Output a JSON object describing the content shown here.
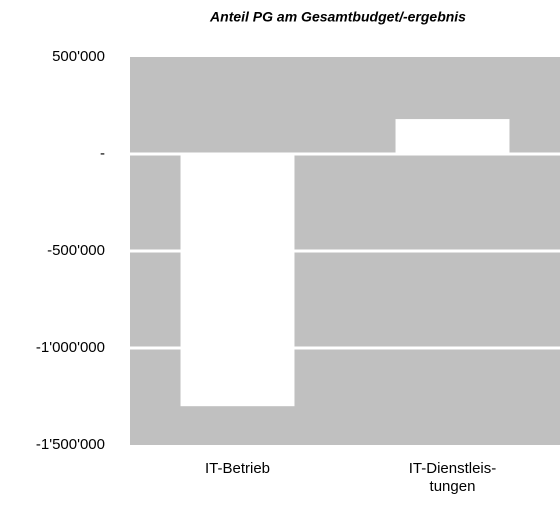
{
  "chart_data": {
    "type": "bar",
    "title": "Anteil PG am Gesamtbudget/-ergebnis",
    "categories": [
      "IT-Betrieb",
      "IT-Dienstleis-\ntungen"
    ],
    "values": [
      -1300000,
      180000
    ],
    "color": "#ffffff",
    "background": "#c0c0c0",
    "ylim": [
      -1500000,
      500000
    ],
    "yticks": [
      {
        "value": 500000,
        "label": "500'000"
      },
      {
        "value": 0,
        "label": "-"
      },
      {
        "value": -500000,
        "label": "-500'000"
      },
      {
        "value": -1000000,
        "label": "-1'000'000"
      },
      {
        "value": -1500000,
        "label": "-1'500'000"
      }
    ],
    "grid": true
  }
}
